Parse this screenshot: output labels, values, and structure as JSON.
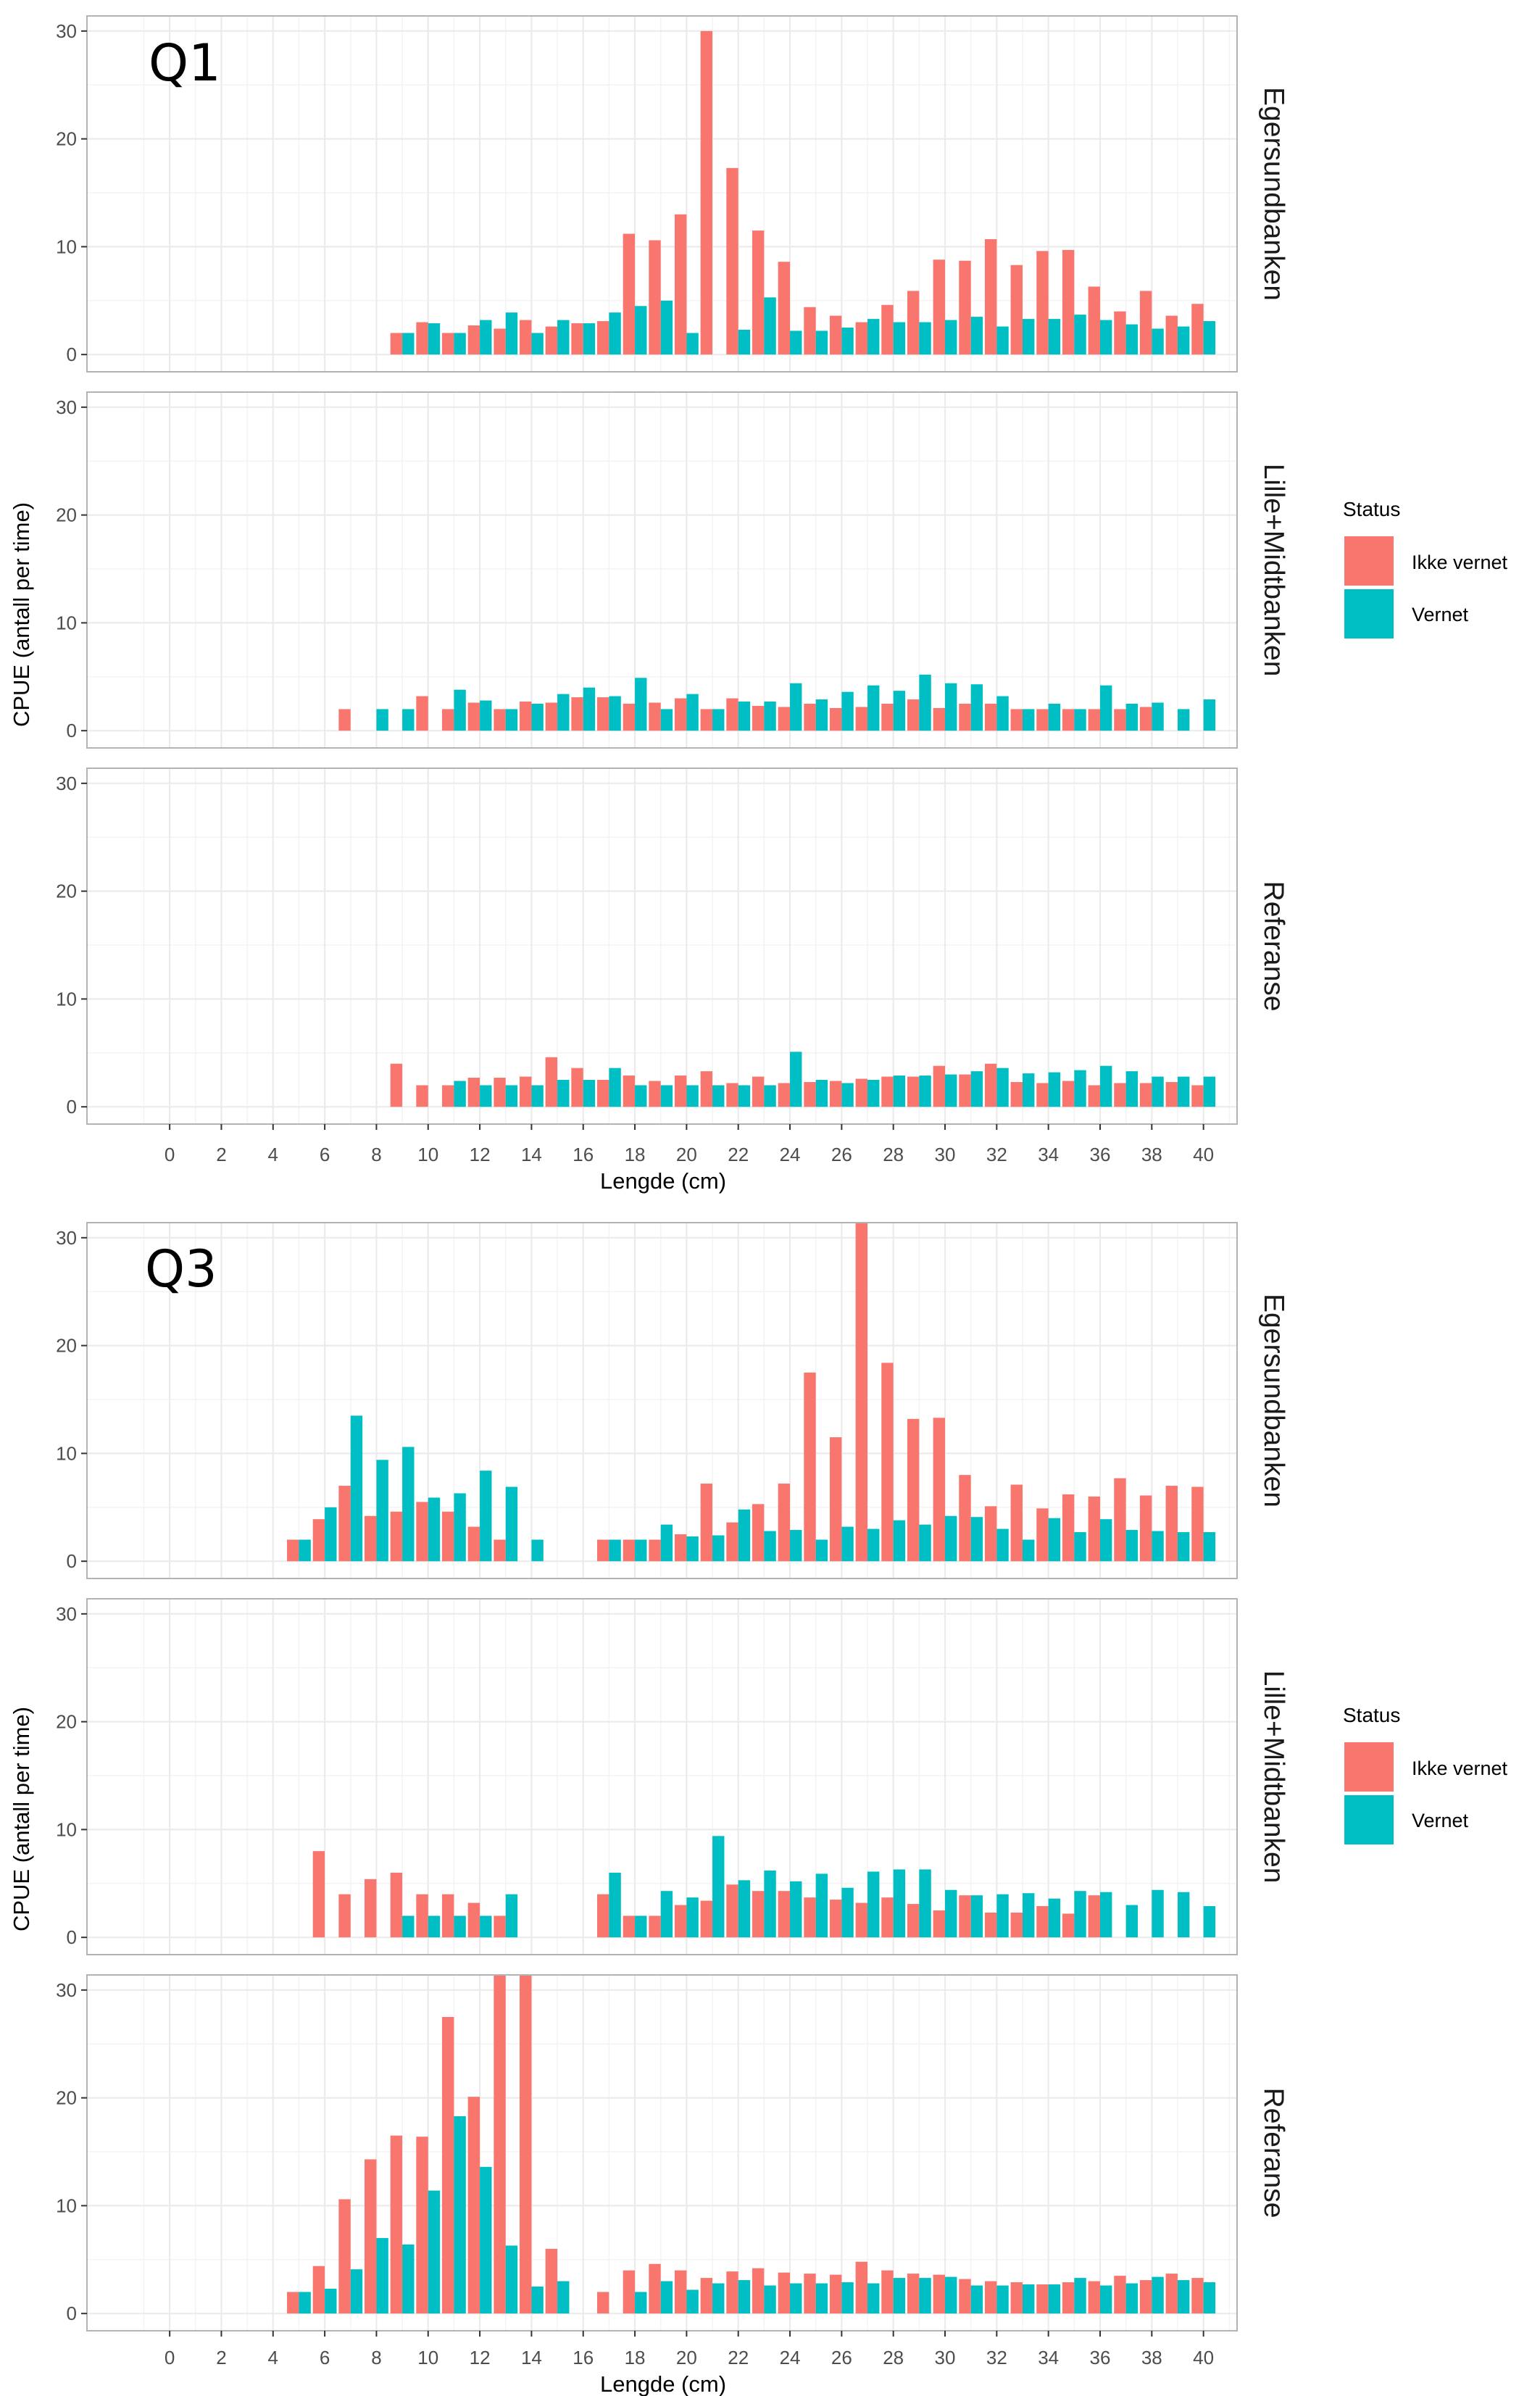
{
  "colors": {
    "ikke_vernet": "#F8766D",
    "vernet": "#00BFC4",
    "grid_major": "#EBEBEB",
    "grid_minor": "#F3F3F3",
    "panel_border": "#B3B3B3",
    "tick_text": "#4D4D4D"
  },
  "legend": {
    "title": "Status",
    "items": [
      {
        "label": "Ikke vernet",
        "key": "ikke_vernet"
      },
      {
        "label": "Vernet",
        "key": "vernet"
      }
    ]
  },
  "axes": {
    "x_label": "Lengde (cm)",
    "y_label": "CPUE (antall per time)",
    "x_ticks": [
      0,
      2,
      4,
      6,
      8,
      10,
      12,
      14,
      16,
      18,
      20,
      22,
      24,
      26,
      28,
      30,
      32,
      34,
      36,
      38,
      40
    ],
    "y_ticks": [
      0,
      10,
      20,
      30
    ],
    "x_range": [
      -3.2,
      41.3
    ],
    "y_range": [
      -1.6,
      31.4
    ]
  },
  "chart_data": [
    {
      "type": "bar",
      "title": "Q1",
      "xlabel": "Lengde (cm)",
      "ylabel": "CPUE (antall per time)",
      "xlim": [
        -3.2,
        41.3
      ],
      "ylim": [
        -1.6,
        31.4
      ],
      "panels": [
        {
          "facet": "Egersundbanken",
          "series": [
            {
              "name": "Ikke vernet",
              "key": "ikke_vernet",
              "x": [
                9,
                10,
                11,
                12,
                13,
                14,
                15,
                16,
                17,
                18,
                19,
                20,
                21,
                22,
                23,
                24,
                25,
                26,
                27,
                28,
                29,
                30,
                31,
                32,
                33,
                34,
                35,
                36,
                37,
                38,
                39,
                40
              ],
              "values": [
                2.0,
                3.0,
                2.0,
                2.7,
                2.4,
                3.2,
                2.6,
                2.9,
                3.1,
                11.2,
                10.6,
                13.0,
                30.0,
                17.3,
                11.5,
                8.6,
                4.4,
                3.6,
                3.0,
                4.6,
                5.9,
                8.8,
                8.7,
                10.7,
                8.3,
                9.6,
                9.7,
                6.3,
                4.0,
                5.9,
                3.6,
                4.7
              ]
            },
            {
              "name": "Vernet",
              "key": "vernet",
              "x": [
                9,
                10,
                11,
                12,
                13,
                14,
                15,
                16,
                17,
                18,
                19,
                20,
                22,
                23,
                24,
                25,
                26,
                27,
                28,
                29,
                30,
                31,
                32,
                33,
                34,
                35,
                36,
                37,
                38,
                39,
                40
              ],
              "values": [
                2.0,
                2.9,
                2.0,
                3.2,
                3.9,
                2.0,
                3.2,
                2.9,
                3.9,
                4.5,
                5.0,
                2.0,
                2.3,
                5.3,
                2.2,
                2.2,
                2.5,
                3.3,
                3.0,
                3.0,
                3.2,
                3.5,
                2.6,
                3.3,
                3.3,
                3.7,
                3.2,
                2.8,
                2.4,
                2.6,
                3.1
              ]
            }
          ]
        },
        {
          "facet": "Lille+Midtbanken",
          "series": [
            {
              "name": "Ikke vernet",
              "key": "ikke_vernet",
              "x": [
                7,
                10,
                11,
                12,
                13,
                14,
                15,
                16,
                17,
                18,
                19,
                20,
                21,
                22,
                23,
                24,
                25,
                26,
                27,
                28,
                29,
                30,
                31,
                32,
                33,
                34,
                35,
                36,
                37,
                38
              ],
              "values": [
                2.0,
                3.2,
                2.0,
                2.6,
                2.0,
                2.7,
                2.6,
                3.1,
                3.1,
                2.5,
                2.6,
                3.0,
                2.0,
                3.0,
                2.3,
                2.2,
                2.5,
                2.1,
                2.2,
                2.5,
                2.9,
                2.1,
                2.5,
                2.5,
                2.0,
                2.0,
                2.0,
                2.0,
                2.0,
                2.2
              ]
            },
            {
              "name": "Vernet",
              "key": "vernet",
              "x": [
                8,
                9,
                11,
                12,
                13,
                14,
                15,
                16,
                17,
                18,
                19,
                20,
                21,
                22,
                23,
                24,
                25,
                26,
                27,
                28,
                29,
                30,
                31,
                32,
                33,
                34,
                35,
                36,
                37,
                38,
                39,
                40
              ],
              "values": [
                2.0,
                2.0,
                3.8,
                2.8,
                2.0,
                2.5,
                3.4,
                4.0,
                3.2,
                4.9,
                2.0,
                3.4,
                2.0,
                2.7,
                2.7,
                4.4,
                2.9,
                3.6,
                4.2,
                3.7,
                5.2,
                4.4,
                4.3,
                3.2,
                2.0,
                2.5,
                2.0,
                4.2,
                2.5,
                2.6,
                2.0,
                2.9
              ]
            }
          ]
        },
        {
          "facet": "Referanse",
          "series": [
            {
              "name": "Ikke vernet",
              "key": "ikke_vernet",
              "x": [
                9,
                10,
                11,
                12,
                13,
                14,
                15,
                16,
                17,
                18,
                19,
                20,
                21,
                22,
                23,
                24,
                25,
                26,
                27,
                28,
                29,
                30,
                31,
                32,
                33,
                34,
                35,
                36,
                37,
                38,
                39,
                40
              ],
              "values": [
                4.0,
                2.0,
                2.0,
                2.7,
                2.7,
                2.8,
                4.6,
                3.6,
                2.5,
                2.9,
                2.4,
                2.9,
                3.3,
                2.2,
                2.8,
                2.2,
                2.3,
                2.4,
                2.6,
                2.8,
                2.8,
                3.8,
                3.0,
                4.0,
                2.3,
                2.2,
                2.4,
                2.0,
                2.2,
                2.2,
                2.3,
                2.0
              ]
            },
            {
              "name": "Vernet",
              "key": "vernet",
              "x": [
                11,
                12,
                13,
                14,
                15,
                16,
                17,
                18,
                19,
                20,
                21,
                22,
                23,
                24,
                25,
                26,
                27,
                28,
                29,
                30,
                31,
                32,
                33,
                34,
                35,
                36,
                37,
                38,
                39,
                40
              ],
              "values": [
                2.4,
                2.0,
                2.0,
                2.0,
                2.5,
                2.5,
                3.6,
                2.0,
                2.0,
                2.0,
                2.0,
                2.0,
                2.0,
                5.1,
                2.5,
                2.2,
                2.5,
                2.9,
                2.9,
                3.0,
                3.3,
                3.6,
                3.1,
                3.2,
                3.4,
                3.8,
                3.3,
                2.8,
                2.8,
                2.8
              ]
            }
          ]
        }
      ]
    },
    {
      "type": "bar",
      "title": "Q3",
      "xlabel": "Lengde (cm)",
      "ylabel": "CPUE (antall per time)",
      "xlim": [
        -3.2,
        41.3
      ],
      "ylim": [
        -1.6,
        31.4
      ],
      "panels": [
        {
          "facet": "Egersundbanken",
          "series": [
            {
              "name": "Ikke vernet",
              "key": "ikke_vernet",
              "x": [
                5,
                6,
                7,
                8,
                9,
                10,
                11,
                12,
                13,
                17,
                18,
                19,
                20,
                21,
                22,
                23,
                24,
                25,
                26,
                27,
                28,
                29,
                30,
                31,
                32,
                33,
                34,
                35,
                36,
                37,
                38,
                39,
                40
              ],
              "values": [
                2.0,
                3.9,
                7.0,
                4.2,
                4.6,
                5.5,
                4.6,
                3.2,
                2.0,
                2.0,
                2.0,
                2.0,
                2.5,
                7.2,
                3.6,
                5.3,
                7.2,
                17.5,
                11.5,
                31.4,
                18.4,
                13.2,
                13.3,
                8.0,
                5.1,
                7.1,
                4.9,
                6.2,
                6.0,
                7.7,
                6.1,
                7.0,
                6.9
              ]
            },
            {
              "name": "Vernet",
              "key": "vernet",
              "x": [
                5,
                6,
                7,
                8,
                9,
                10,
                11,
                12,
                13,
                14,
                17,
                18,
                19,
                20,
                21,
                22,
                23,
                24,
                25,
                26,
                27,
                28,
                29,
                30,
                31,
                32,
                33,
                34,
                35,
                36,
                37,
                38,
                39,
                40
              ],
              "values": [
                2.0,
                5.0,
                13.5,
                9.4,
                10.6,
                5.9,
                6.3,
                8.4,
                6.9,
                2.0,
                2.0,
                2.0,
                3.4,
                2.3,
                2.4,
                4.8,
                2.8,
                2.9,
                2.0,
                3.2,
                3.0,
                3.8,
                3.4,
                4.2,
                4.1,
                3.0,
                2.0,
                4.0,
                2.7,
                3.9,
                2.9,
                2.8,
                2.7,
                2.7
              ]
            }
          ]
        },
        {
          "facet": "Lille+Midtbanken",
          "series": [
            {
              "name": "Ikke vernet",
              "key": "ikke_vernet",
              "x": [
                6,
                7,
                8,
                9,
                10,
                11,
                12,
                13,
                17,
                18,
                19,
                20,
                21,
                22,
                23,
                24,
                25,
                26,
                27,
                28,
                29,
                30,
                31,
                32,
                33,
                34,
                35,
                36
              ],
              "values": [
                8.0,
                4.0,
                5.4,
                6.0,
                4.0,
                4.0,
                3.2,
                2.0,
                4.0,
                2.0,
                2.0,
                3.0,
                3.4,
                4.9,
                4.3,
                4.3,
                3.7,
                3.5,
                3.2,
                3.7,
                3.1,
                2.5,
                3.9,
                2.3,
                2.3,
                2.9,
                2.2,
                3.9
              ]
            },
            {
              "name": "Vernet",
              "key": "vernet",
              "x": [
                9,
                10,
                11,
                12,
                13,
                17,
                18,
                19,
                20,
                21,
                22,
                23,
                24,
                25,
                26,
                27,
                28,
                29,
                30,
                31,
                32,
                33,
                34,
                35,
                36,
                37,
                38,
                39,
                40
              ],
              "values": [
                2.0,
                2.0,
                2.0,
                2.0,
                4.0,
                6.0,
                2.0,
                4.3,
                3.7,
                9.4,
                5.3,
                6.2,
                5.2,
                5.9,
                4.6,
                6.1,
                6.3,
                6.3,
                4.4,
                3.9,
                4.0,
                4.1,
                3.6,
                4.3,
                4.2,
                3.0,
                4.4,
                4.2,
                2.9
              ]
            }
          ]
        },
        {
          "facet": "Referanse",
          "series": [
            {
              "name": "Ikke vernet",
              "key": "ikke_vernet",
              "x": [
                5,
                6,
                7,
                8,
                9,
                10,
                11,
                12,
                13,
                14,
                15,
                17,
                18,
                19,
                20,
                21,
                22,
                23,
                24,
                25,
                26,
                27,
                28,
                29,
                30,
                31,
                32,
                33,
                34,
                35,
                36,
                37,
                38,
                39,
                40
              ],
              "values": [
                2.0,
                4.4,
                10.6,
                14.3,
                16.5,
                16.4,
                27.5,
                20.1,
                31.4,
                31.4,
                6.0,
                2.0,
                4.0,
                4.6,
                4.0,
                3.3,
                3.9,
                4.2,
                3.8,
                3.7,
                3.6,
                4.8,
                4.0,
                3.7,
                3.6,
                3.2,
                3.0,
                2.9,
                2.7,
                2.9,
                3.0,
                3.5,
                3.1,
                3.7,
                3.3
              ]
            },
            {
              "name": "Vernet",
              "key": "vernet",
              "x": [
                5,
                6,
                7,
                8,
                9,
                10,
                11,
                12,
                13,
                14,
                15,
                18,
                19,
                20,
                21,
                22,
                23,
                24,
                25,
                26,
                27,
                28,
                29,
                30,
                31,
                32,
                33,
                34,
                35,
                36,
                37,
                38,
                39,
                40
              ],
              "values": [
                2.0,
                2.3,
                4.1,
                7.0,
                6.4,
                11.4,
                18.3,
                13.6,
                6.3,
                2.5,
                3.0,
                2.0,
                3.0,
                2.2,
                2.8,
                3.1,
                2.6,
                2.8,
                2.8,
                2.9,
                2.8,
                3.3,
                3.3,
                3.4,
                2.6,
                2.6,
                2.7,
                2.7,
                3.3,
                2.6,
                2.8,
                3.4,
                3.1,
                2.9
              ]
            }
          ]
        }
      ]
    }
  ]
}
